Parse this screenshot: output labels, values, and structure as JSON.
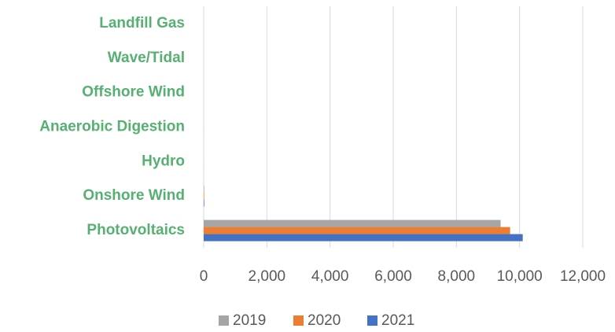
{
  "chart_data": {
    "type": "bar",
    "orientation": "horizontal",
    "categories": [
      "Landfill Gas",
      "Wave/Tidal",
      "Offshore Wind",
      "Anaerobic Digestion",
      "Hydro",
      "Onshore Wind",
      "Photovoltaics"
    ],
    "series": [
      {
        "name": "2019",
        "color": "#a5a5a5",
        "values": [
          0,
          0,
          0,
          1,
          1,
          15,
          9400
        ]
      },
      {
        "name": "2020",
        "color": "#ed7d31",
        "values": [
          0,
          0,
          0,
          1,
          1,
          16,
          9700
        ]
      },
      {
        "name": "2021",
        "color": "#4472c4",
        "values": [
          0,
          0,
          0,
          1,
          1,
          17,
          10100
        ]
      }
    ],
    "xlim": [
      0,
      12000
    ],
    "xticks": [
      0,
      {
        "value": 2000,
        "label": "2,000"
      },
      {
        "value": 4000,
        "label": "4,000"
      },
      {
        "value": 6000,
        "label": "6,000"
      },
      {
        "value": 8000,
        "label": "8,000"
      },
      {
        "value": 10000,
        "label": "10,000"
      },
      {
        "value": 12000,
        "label": "12,000"
      }
    ],
    "grid": true,
    "legend": "bottom"
  }
}
